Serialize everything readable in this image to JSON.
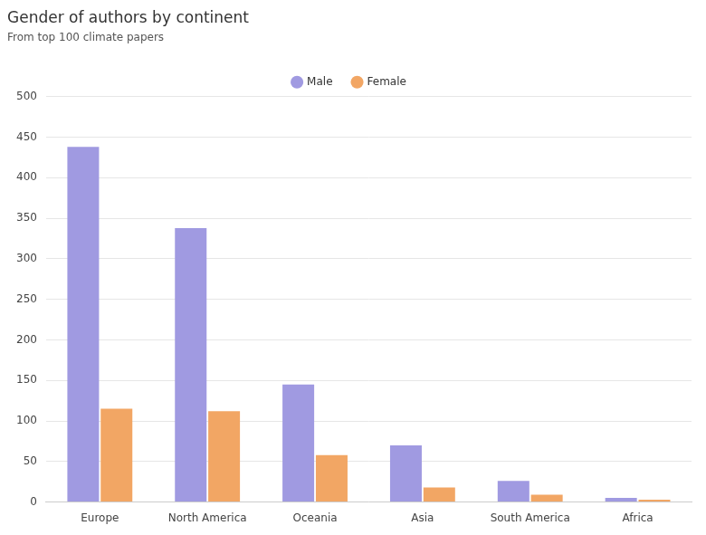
{
  "chart_data": {
    "type": "bar",
    "title": "Gender of authors by continent",
    "subtitle": "From top 100 climate papers",
    "categories": [
      "Europe",
      "North America",
      "Oceania",
      "Asia",
      "South America",
      "Africa"
    ],
    "series": [
      {
        "name": "Male",
        "color": "#a09ae1",
        "values": [
          438,
          338,
          145,
          70,
          26,
          5
        ]
      },
      {
        "name": "Female",
        "color": "#f2a664",
        "values": [
          115,
          112,
          58,
          18,
          9,
          3
        ]
      }
    ],
    "ylim": [
      0,
      500
    ],
    "yticks": [
      0,
      50,
      100,
      150,
      200,
      250,
      300,
      350,
      400,
      450,
      500
    ],
    "grid": true,
    "legend": "top"
  }
}
